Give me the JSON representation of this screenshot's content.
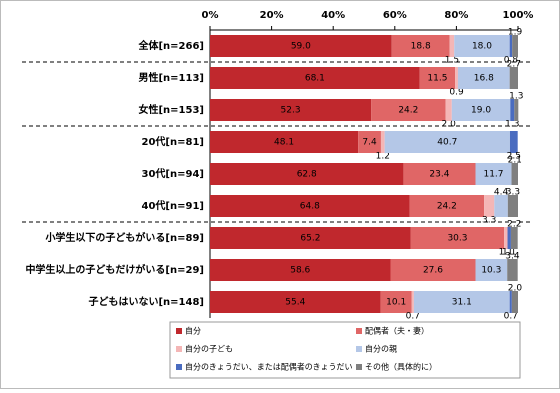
{
  "chart_data": {
    "type": "stacked-bar",
    "categories": [
      "全体[n=266]",
      "男性[n=113]",
      "女性[n=153]",
      "20代[n=81]",
      "30代[n=94]",
      "40代[n=91]",
      "小学生以下の子どもがいる[n=89]",
      "中学生以上の子どもだけがいる[n=29]",
      "子どもはいない[n=148]"
    ],
    "series": [
      {
        "name": "自分",
        "color": "#c0282d",
        "values": [
          59.0,
          68.1,
          52.3,
          48.1,
          62.8,
          64.8,
          65.2,
          58.6,
          55.4
        ],
        "value_labels": [
          "59.0",
          "68.1",
          "52.3",
          "48.1",
          "62.8",
          "64.8",
          "65.2",
          "58.6",
          "55.4"
        ]
      },
      {
        "name": "配偶者（夫・妻）",
        "color": "#e06666",
        "values": [
          18.8,
          11.5,
          24.2,
          7.4,
          23.4,
          24.2,
          30.3,
          27.6,
          10.1
        ],
        "value_labels": [
          "18.8",
          "11.5",
          "24.2",
          "7.4",
          "23.4",
          "24.2",
          "30.3",
          "27.6",
          "10.1"
        ]
      },
      {
        "name": "自分の子ども",
        "color": "#f4b6b6",
        "values": [
          1.5,
          0.9,
          2.0,
          1.2,
          0,
          3.3,
          1.1,
          0,
          0.7
        ],
        "value_labels": [
          "1.5",
          "0.9",
          "2.0",
          "1.2",
          null,
          "3.3",
          "1.1",
          null,
          "0.7"
        ]
      },
      {
        "name": "自分の親",
        "color": "#b4c7e7",
        "values": [
          18.0,
          16.8,
          19.0,
          40.7,
          11.7,
          4.4,
          0,
          10.3,
          31.1
        ],
        "value_labels": [
          "18.0",
          "16.8",
          "19.0",
          "40.7",
          "11.7",
          "4.4",
          null,
          "10.3",
          "31.1"
        ]
      },
      {
        "name": "自分のきょうだい、または配偶者のきょうだい",
        "color": "#4a6cc0",
        "values": [
          0.8,
          0,
          1.3,
          2.5,
          0,
          0,
          1.1,
          0,
          0.7
        ],
        "value_labels": [
          "0.8",
          null,
          "1.3",
          "2.5",
          null,
          null,
          "1.1",
          null,
          "0.7"
        ]
      },
      {
        "name": "その他（具体的に）",
        "color": "#7f7f7f",
        "values": [
          1.9,
          2.7,
          1.3,
          0,
          2.1,
          3.3,
          2.2,
          3.4,
          2.0
        ],
        "value_labels": [
          "1.9",
          "2.7",
          "1.3",
          null,
          "2.1",
          "3.3",
          "2.2",
          "3.4",
          "2.0"
        ]
      }
    ],
    "xlim": [
      0,
      100
    ],
    "xticks": [
      {
        "value": 0,
        "label": "0%"
      },
      {
        "value": 20,
        "label": "20%"
      },
      {
        "value": 40,
        "label": "40%"
      },
      {
        "value": 60,
        "label": "60%"
      },
      {
        "value": 80,
        "label": "80%"
      },
      {
        "value": 100,
        "label": "100%"
      }
    ]
  }
}
